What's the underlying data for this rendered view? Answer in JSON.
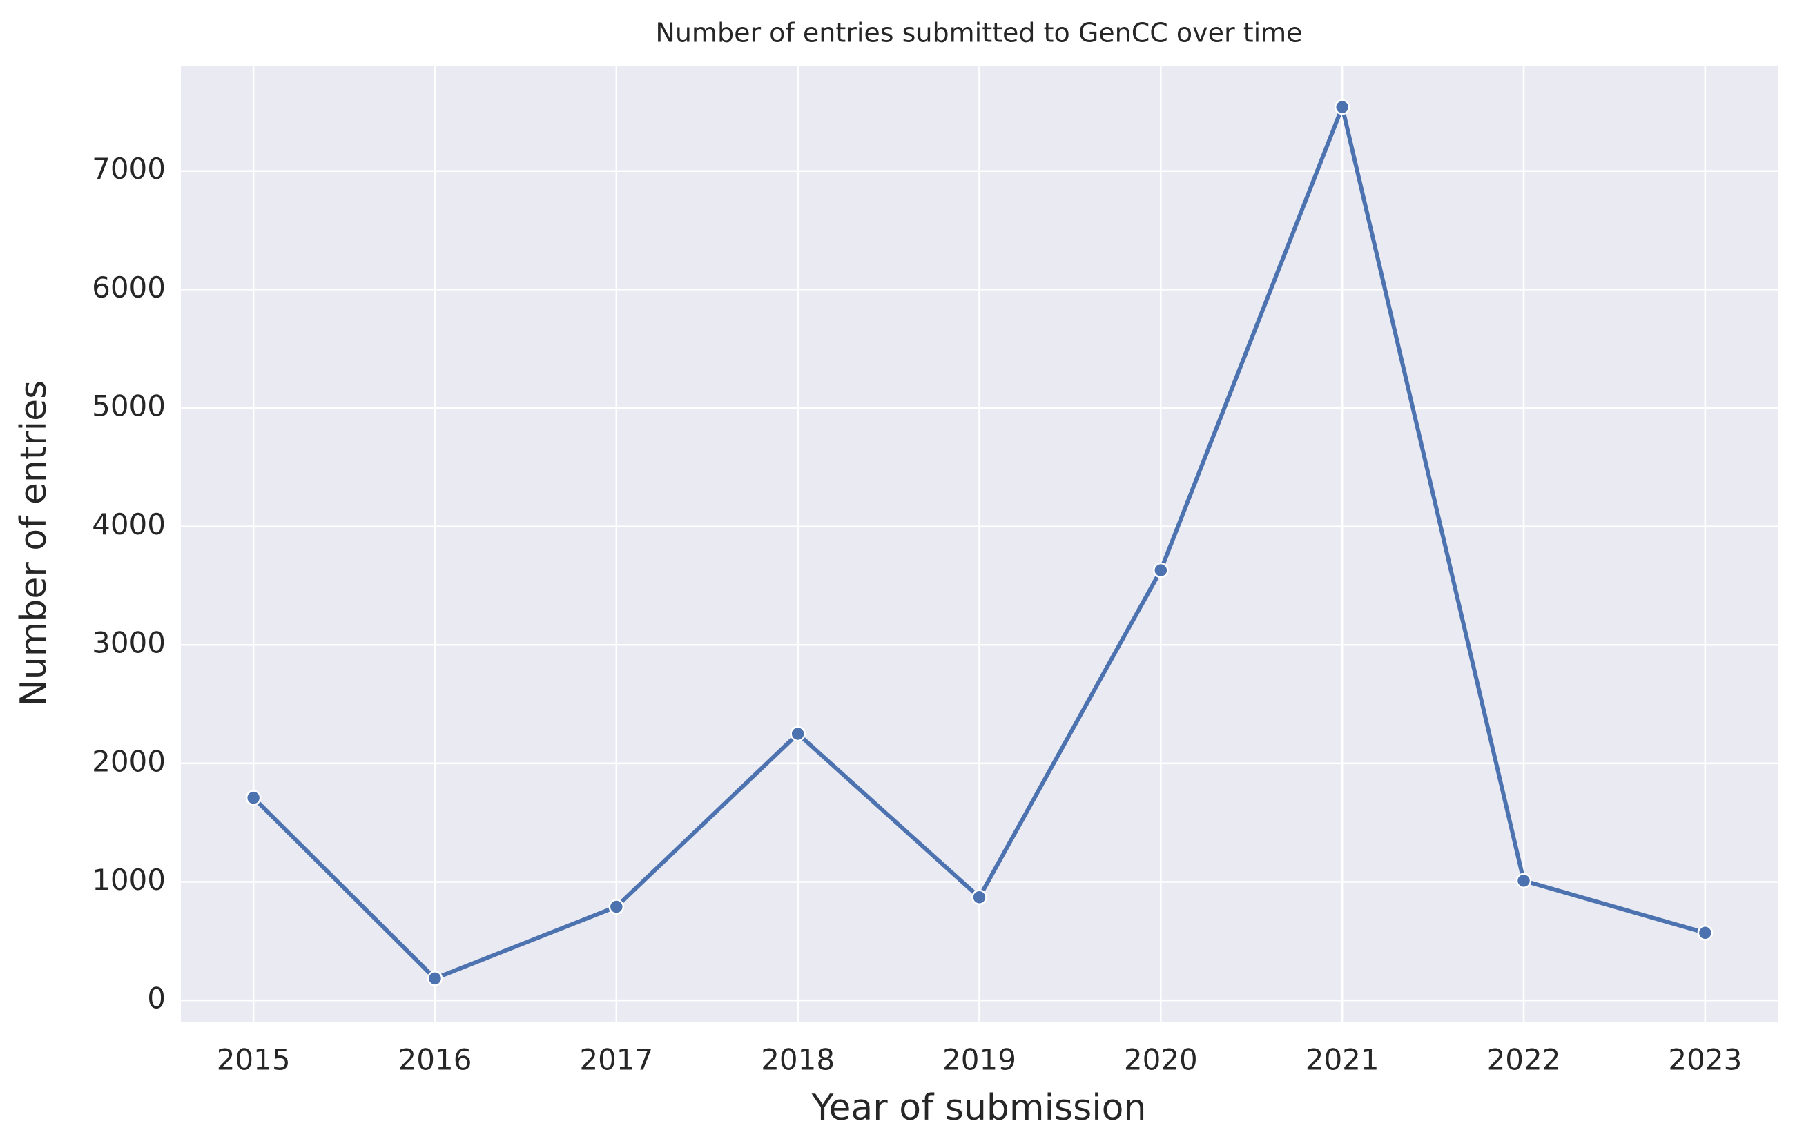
{
  "chart_data": {
    "type": "line",
    "title": "Number of entries submitted to GenCC over time",
    "x_label": "Year of submission",
    "y_label": "Number of entries",
    "x": [
      2015,
      2016,
      2017,
      2018,
      2019,
      2020,
      2021,
      2022,
      2023
    ],
    "values": [
      1710,
      185,
      790,
      2250,
      870,
      3630,
      7540,
      1010,
      570
    ],
    "color": "#4c72b0",
    "xlim": [
      2014.6,
      2023.4
    ],
    "xticks": [
      2015,
      2016,
      2017,
      2018,
      2019,
      2020,
      2021,
      2022,
      2023
    ],
    "ylim": [
      -180,
      7890
    ],
    "yticks": [
      0,
      1000,
      2000,
      3000,
      4000,
      5000,
      6000,
      7000
    ],
    "grid": true,
    "markers": true
  }
}
